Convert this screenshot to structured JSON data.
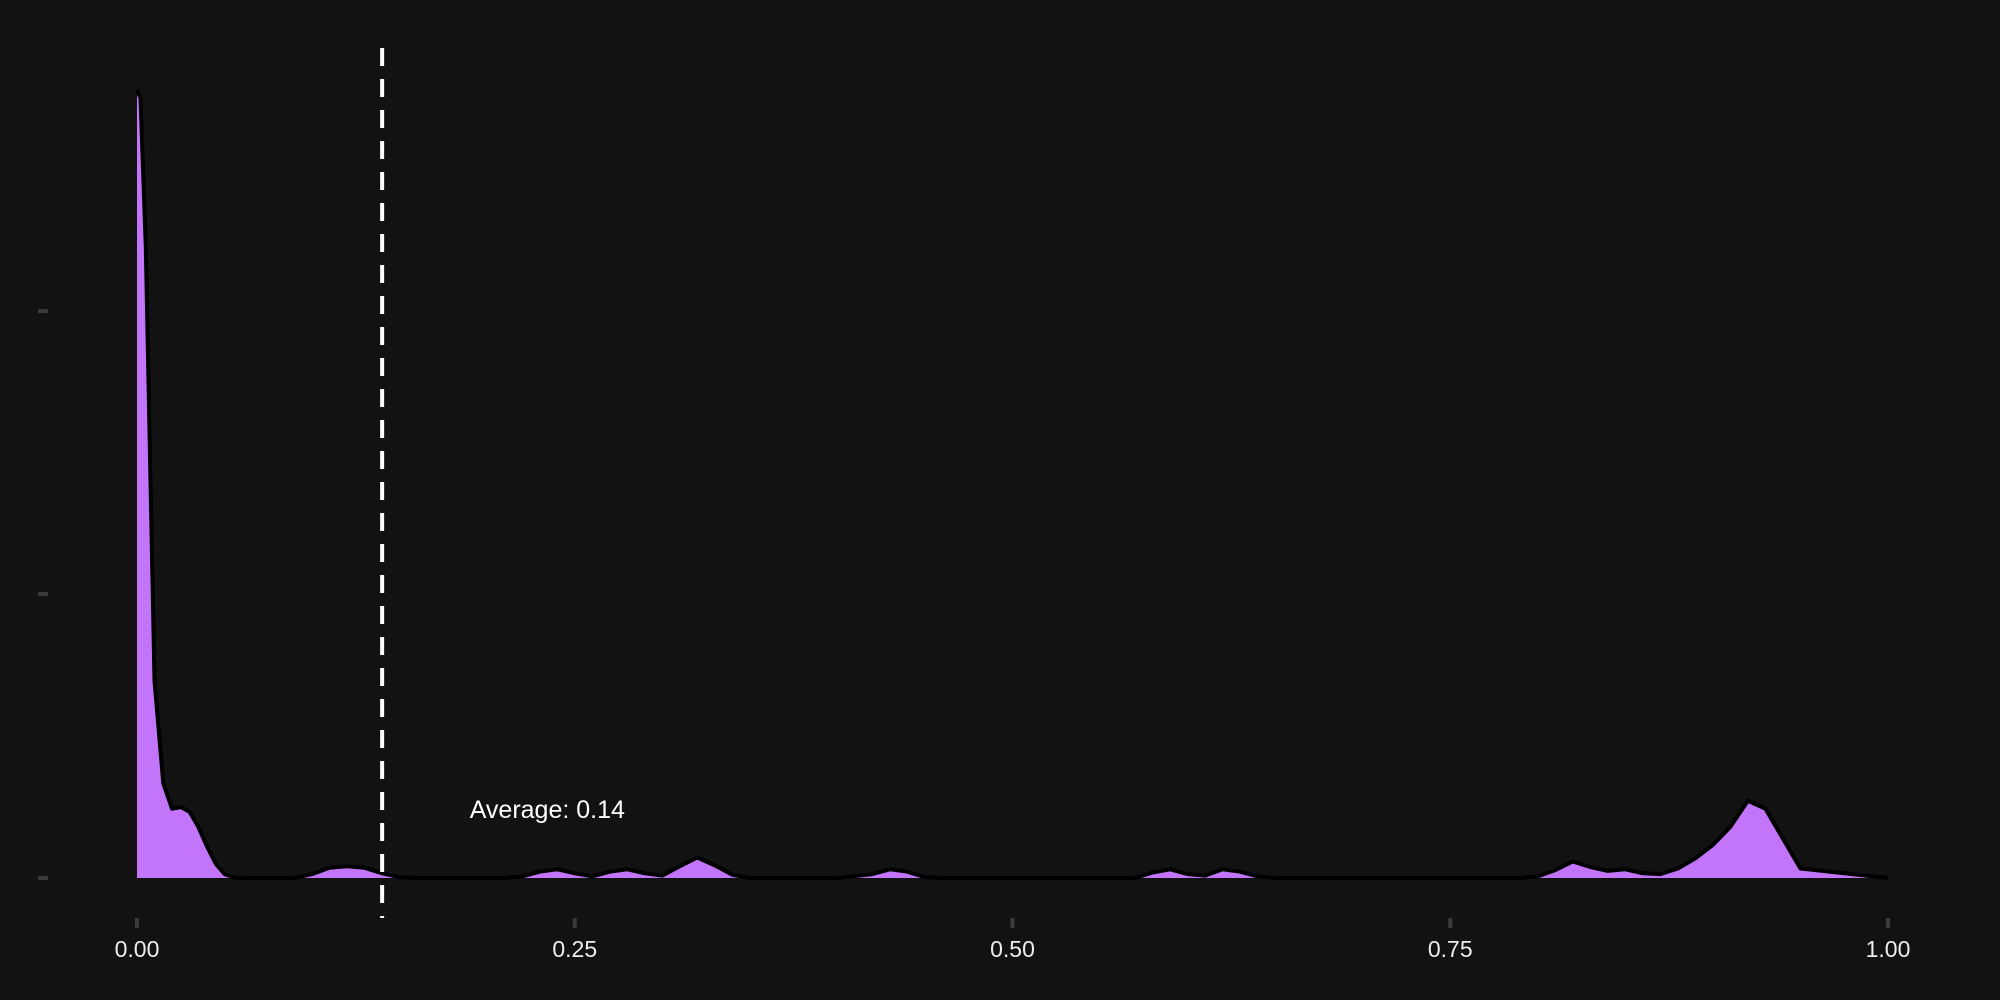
{
  "chart_data": {
    "type": "area",
    "title": "",
    "xlabel": "",
    "ylabel": "",
    "xlim": [
      0,
      1
    ],
    "x_ticks": [
      0,
      0.25,
      0.5,
      0.75,
      1.0
    ],
    "x_tick_labels": [
      "0.00",
      "0.25",
      "0.50",
      "0.75",
      "1.00"
    ],
    "y_tick_count": 3,
    "grid": false,
    "legend": "none",
    "fill_color": "#c375f9",
    "line_color": "#000000",
    "background_color": "#121212",
    "mean_line": {
      "x": 0.14,
      "style": "dashed",
      "color": "#ffffff"
    },
    "annotation": {
      "text": "Average: 0.14",
      "x": 0.19
    },
    "density": {
      "x": [
        0.0,
        0.002,
        0.005,
        0.01,
        0.015,
        0.02,
        0.025,
        0.03,
        0.035,
        0.04,
        0.045,
        0.05,
        0.055,
        0.06,
        0.065,
        0.07,
        0.08,
        0.09,
        0.1,
        0.11,
        0.12,
        0.13,
        0.14,
        0.15,
        0.16,
        0.17,
        0.18,
        0.19,
        0.2,
        0.21,
        0.22,
        0.23,
        0.24,
        0.25,
        0.26,
        0.27,
        0.28,
        0.29,
        0.3,
        0.31,
        0.32,
        0.33,
        0.34,
        0.35,
        0.36,
        0.37,
        0.38,
        0.4,
        0.42,
        0.43,
        0.44,
        0.45,
        0.46,
        0.47,
        0.5,
        0.55,
        0.57,
        0.58,
        0.59,
        0.6,
        0.61,
        0.62,
        0.63,
        0.64,
        0.65,
        0.7,
        0.75,
        0.78,
        0.79,
        0.8,
        0.81,
        0.82,
        0.83,
        0.84,
        0.85,
        0.86,
        0.87,
        0.88,
        0.89,
        0.9,
        0.91,
        0.92,
        0.93,
        0.94,
        0.95,
        1.0
      ],
      "y": [
        100,
        99,
        80,
        25,
        12,
        8.8,
        9,
        8.4,
        6.5,
        4,
        1.8,
        0.5,
        0.1,
        0,
        0,
        0,
        0,
        0,
        0.5,
        1.3,
        1.5,
        1.3,
        0.6,
        0.1,
        0,
        0,
        0,
        0,
        0,
        0,
        0.2,
        0.8,
        1.1,
        0.6,
        0.2,
        0.8,
        1.1,
        0.6,
        0.3,
        1.5,
        2.6,
        1.6,
        0.4,
        0,
        0,
        0,
        0,
        0,
        0.5,
        1.1,
        0.8,
        0.1,
        0,
        0,
        0,
        0,
        0,
        0.7,
        1.1,
        0.5,
        0.3,
        1.1,
        0.8,
        0.2,
        0,
        0,
        0,
        0,
        0,
        0.2,
        1.0,
        2.1,
        1.4,
        0.9,
        1.1,
        0.6,
        0.5,
        1.2,
        2.5,
        4.2,
        6.5,
        9.8,
        8.8,
        5.0,
        1.2,
        0
      ]
    }
  }
}
